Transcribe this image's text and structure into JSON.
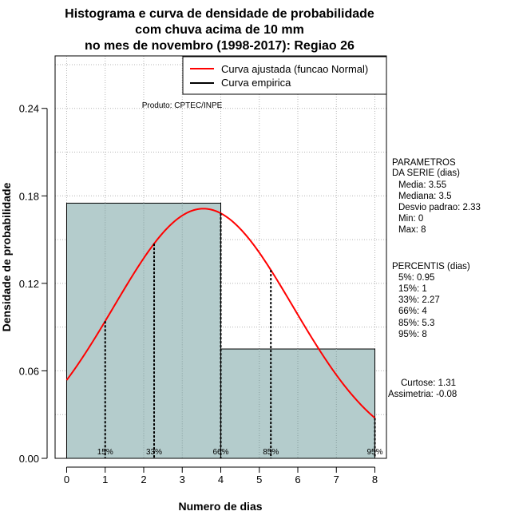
{
  "chart_data": {
    "type": "histogram",
    "title_lines": [
      "Histograma e curva de densidade de probabilidade",
      "com chuva acima de 10 mm",
      "no mes de novembro (1998-2017): Regiao 26"
    ],
    "xlabel": "Numero de dias",
    "ylabel": "Densidade de probabilidade",
    "xlim": [
      -0.3,
      8.3
    ],
    "ylim": [
      0,
      0.276
    ],
    "x_ticks": [
      0,
      1,
      2,
      3,
      4,
      5,
      6,
      7,
      8
    ],
    "y_ticks": [
      0.0,
      0.06,
      0.12,
      0.18,
      0.24
    ],
    "y_tick_labels": [
      "0.00",
      "0.06",
      "0.12",
      "0.18",
      "0.24"
    ],
    "grid": true,
    "bins": [
      {
        "x0": 0,
        "x1": 4,
        "density": 0.175
      },
      {
        "x0": 4,
        "x1": 8,
        "density": 0.075
      }
    ],
    "fitted_curve": {
      "name": "Curva ajustada (funcao Normal)",
      "mean": 3.55,
      "sd": 2.33,
      "x_range": [
        0,
        8
      ],
      "color": "#ff0000"
    },
    "empirical_curve": {
      "name": "Curva empirica",
      "color": "#000000"
    },
    "legend_position": "top-right",
    "percentile_markers": [
      {
        "label": "15%",
        "x": 1
      },
      {
        "label": "33%",
        "x": 2.27
      },
      {
        "label": "66%",
        "x": 4
      },
      {
        "label": "85%",
        "x": 5.3
      },
      {
        "label": "95%",
        "x": 8
      }
    ],
    "annotation": "Produto: CPTEC/INPE",
    "colors": {
      "bars": "#b4cccc",
      "fitted": "#ff0000",
      "grid": "#b4b4b4"
    }
  },
  "side_panel": {
    "params_title_1": "PARAMETROS",
    "params_title_2": "DA SERIE (dias)",
    "params": [
      "Media: 3.55",
      "Mediana: 3.5",
      "Desvio padrao: 2.33",
      "Min: 0",
      "Max: 8"
    ],
    "percentis_title": "PERCENTIS (dias)",
    "percentis": [
      "5%: 0.95",
      "15%: 1",
      "33%: 2.27",
      "66%: 4",
      "85%: 5.3",
      "95%: 8"
    ],
    "curtose": "Curtose: 1.31",
    "assimetria": "Assimetria: -0.08"
  }
}
